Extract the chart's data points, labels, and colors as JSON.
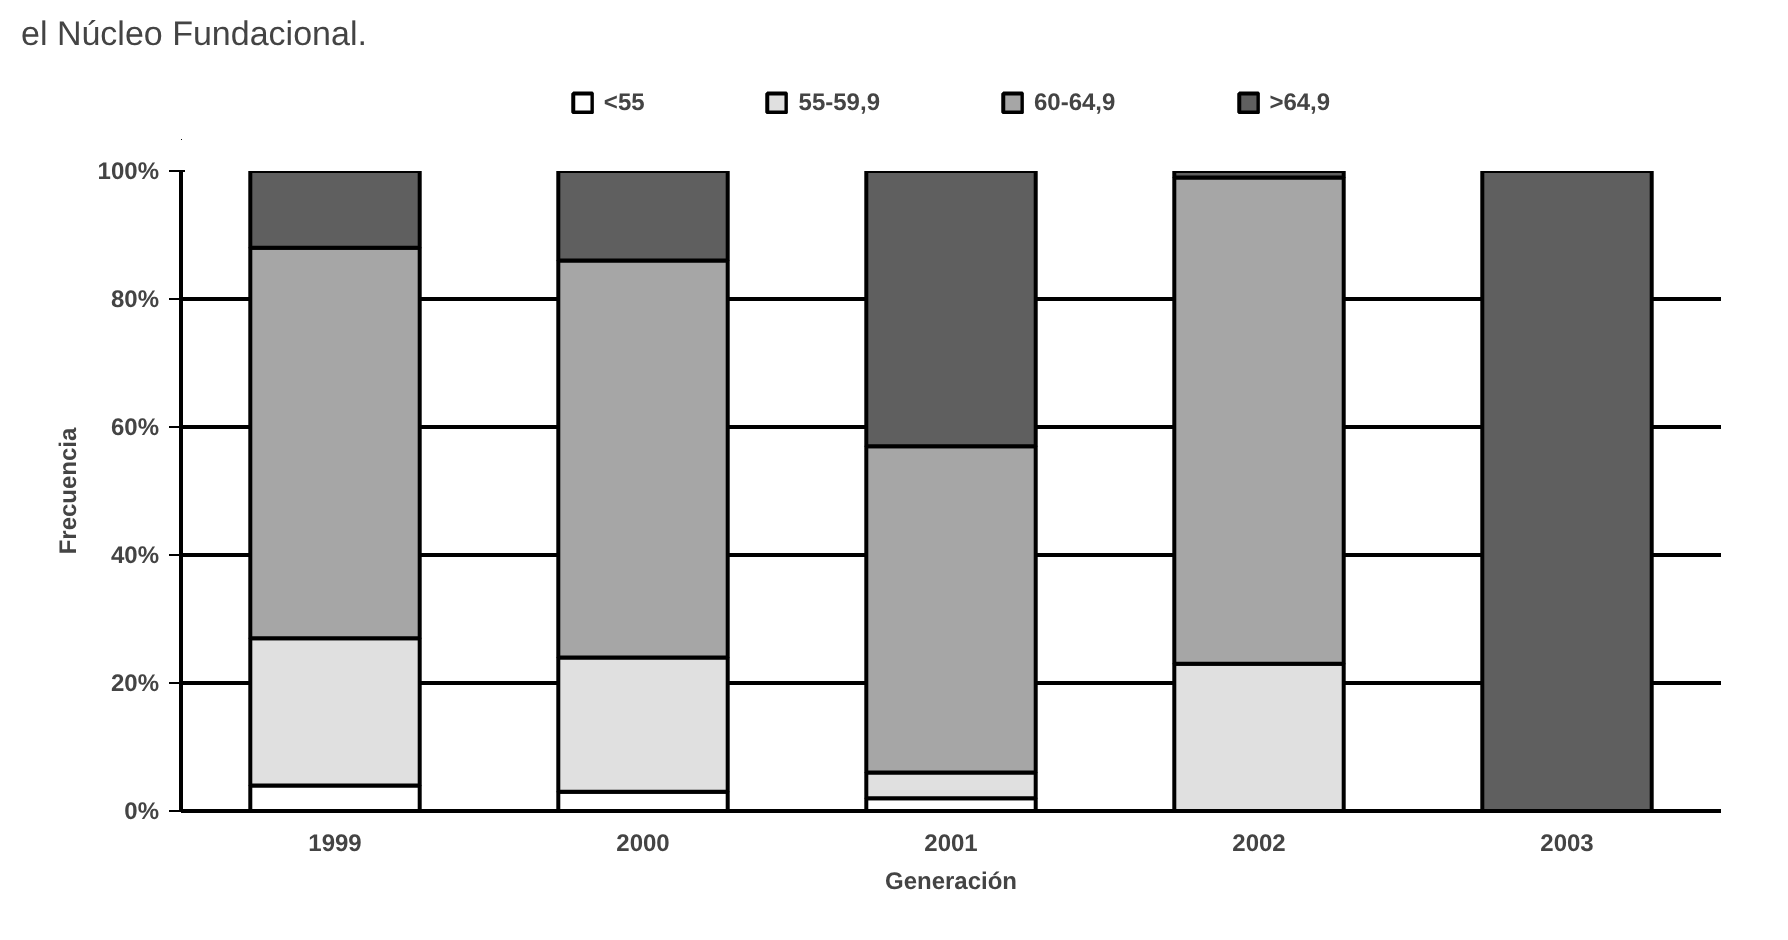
{
  "chart_data": {
    "type": "bar",
    "stacked": true,
    "xlabel": "Generación",
    "ylabel": "Frecuencia",
    "annotations": [
      "el Núcleo Fundacional."
    ],
    "categories": [
      "1999",
      "2000",
      "2001",
      "2002",
      "2003"
    ],
    "series": [
      {
        "name": "<55",
        "color": "#ffffff",
        "values": [
          4,
          3,
          2,
          0,
          0
        ]
      },
      {
        "name": "55-59,9",
        "color": "#e0e0e0",
        "values": [
          23,
          21,
          4,
          23,
          0
        ]
      },
      {
        "name": "60-64,9",
        "color": "#a6a6a6",
        "values": [
          61,
          62,
          51,
          76,
          0
        ]
      },
      {
        "name": ">64,9",
        "color": "#5f5f5f",
        "values": [
          12,
          14,
          43,
          1,
          100
        ]
      }
    ],
    "ylim": [
      0,
      100
    ],
    "yticks": [
      {
        "value": 0,
        "label": "0%"
      },
      {
        "value": 20,
        "label": "20%"
      },
      {
        "value": 40,
        "label": "40%"
      },
      {
        "value": 60,
        "label": "60%"
      },
      {
        "value": 80,
        "label": "80%"
      },
      {
        "value": 100,
        "label": "100%"
      }
    ],
    "grid": "y",
    "legend": "top"
  }
}
